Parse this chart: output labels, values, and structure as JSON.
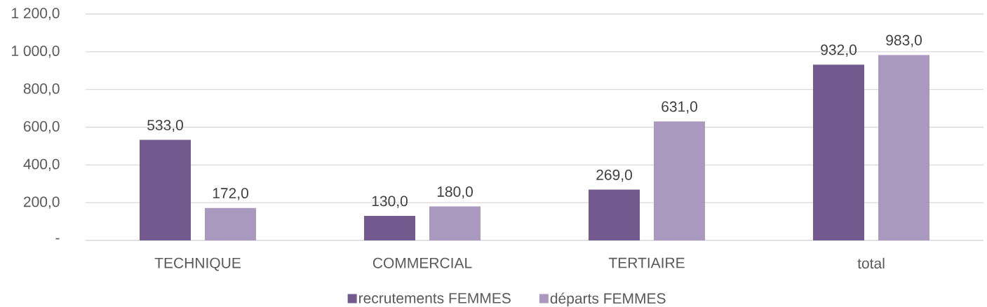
{
  "chart_data": {
    "type": "bar",
    "categories": [
      "TECHNIQUE",
      "COMMERCIAL",
      "TERTIAIRE",
      "total"
    ],
    "series": [
      {
        "name": "recrutements FEMMES",
        "color": "#725A8E",
        "values": [
          533,
          130,
          269,
          932
        ],
        "value_labels": [
          "533,0",
          "130,0",
          "269,0",
          "932,0"
        ]
      },
      {
        "name": "départs FEMMES",
        "color": "#A999BE",
        "values": [
          172,
          180,
          631,
          983
        ],
        "value_labels": [
          "172,0",
          "180,0",
          "631,0",
          "983,0"
        ]
      }
    ],
    "ylim": [
      0,
      1200
    ],
    "yticks": [
      {
        "value": 0,
        "label": "-"
      },
      {
        "value": 200,
        "label": "200,0"
      },
      {
        "value": 400,
        "label": "400,0"
      },
      {
        "value": 600,
        "label": "600,0"
      },
      {
        "value": 800,
        "label": "800,0"
      },
      {
        "value": 1000,
        "label": "1 000,0"
      },
      {
        "value": 1200,
        "label": "1 200,0"
      }
    ],
    "grid": "y",
    "legend": "bottom"
  }
}
